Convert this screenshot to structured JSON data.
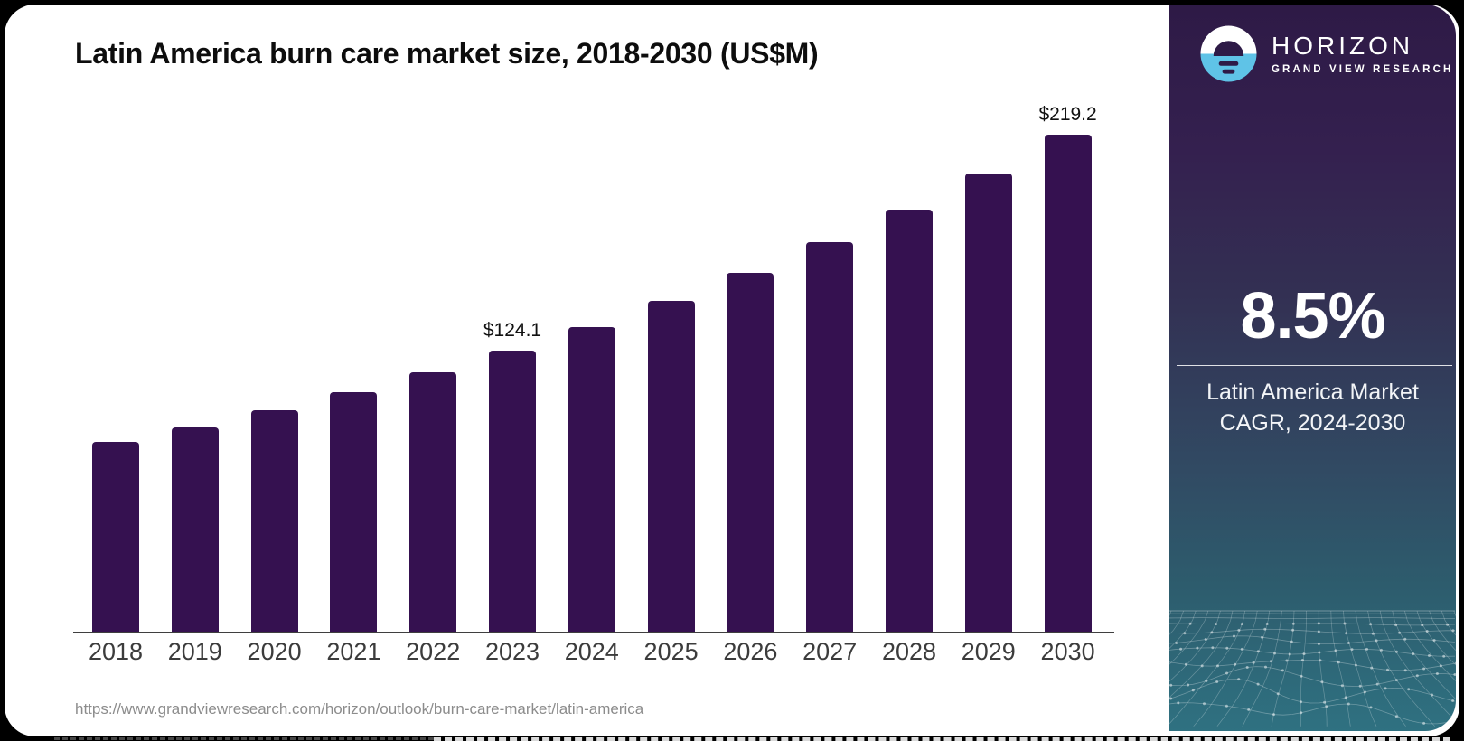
{
  "header": {
    "title": "Latin America burn care market size, 2018-2030 (US$M)"
  },
  "source_url": "https://www.grandviewresearch.com/horizon/outlook/burn-care-market/latin-america",
  "sidebar": {
    "brand": {
      "name": "HORIZON",
      "tagline": "GRAND VIEW RESEARCH"
    },
    "stat": {
      "value": "8.5%",
      "caption_line1": "Latin America Market",
      "caption_line2": "CAGR, 2024-2030"
    }
  },
  "chart_data": {
    "type": "bar",
    "title": "Latin America burn care market size, 2018-2030 (US$M)",
    "xlabel": "",
    "ylabel": "US$M",
    "ylim": [
      0,
      230
    ],
    "grid": false,
    "legend": "none",
    "categories": [
      "2018",
      "2019",
      "2020",
      "2021",
      "2022",
      "2023",
      "2024",
      "2025",
      "2026",
      "2027",
      "2028",
      "2029",
      "2030"
    ],
    "values": [
      83.6,
      90.0,
      97.5,
      105.8,
      114.4,
      124.1,
      134.4,
      145.8,
      158.2,
      171.6,
      186.2,
      202.0,
      219.2
    ],
    "point_labels": [
      {
        "category": "2023",
        "text": "$124.1"
      },
      {
        "category": "2030",
        "text": "$219.2"
      }
    ]
  },
  "colors": {
    "bar": "#351150",
    "axis": "#3f3f3f",
    "panel_top": "#2e1a46",
    "panel_bottom": "#2f7181",
    "logo_blue": "#5fc3e7",
    "logo_dark": "#2e1b47",
    "background": "#000000",
    "card": "#ffffff"
  }
}
